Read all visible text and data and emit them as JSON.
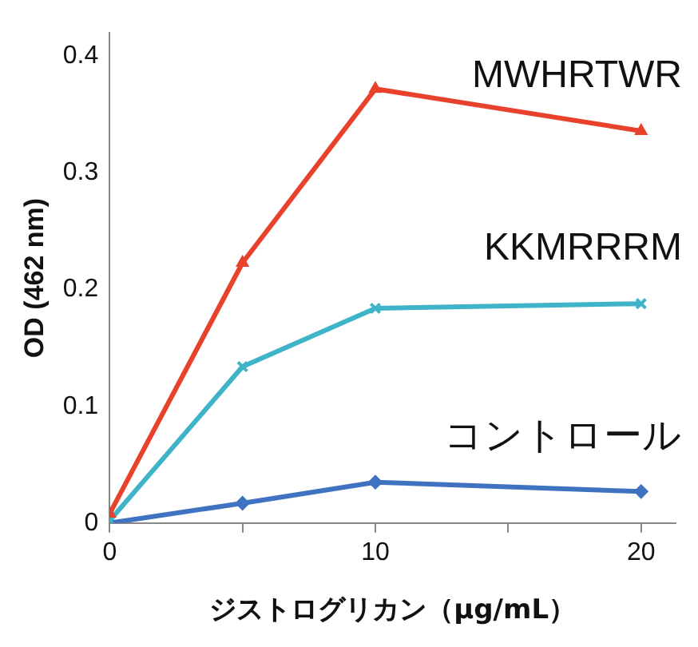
{
  "chart_data": {
    "type": "line",
    "xlabel": "ジストログリカン（μg/mL）",
    "ylabel": "OD (462 nm)",
    "x": [
      0,
      5,
      10,
      20
    ],
    "series": [
      {
        "name": "MWHRTWR",
        "color": "#e8412c",
        "marker": "triangle",
        "values": [
          0.008,
          0.223,
          0.372,
          0.336
        ]
      },
      {
        "name": "KKMRRRM",
        "color": "#3fb3c8",
        "marker": "cross",
        "values": [
          0.002,
          0.134,
          0.184,
          0.188
        ]
      },
      {
        "name": "コントロール",
        "color": "#3f72c0",
        "marker": "diamond",
        "values": [
          0,
          0.017,
          0.035,
          0.027
        ]
      }
    ],
    "xlim": [
      0,
      21.3
    ],
    "xticks": [
      0,
      {
        "value": 5,
        "label": null
      },
      10,
      {
        "value": 15,
        "label": null
      },
      20
    ],
    "ylim": [
      0,
      0.42
    ],
    "yticks": [
      0,
      0.1,
      0.2,
      0.3,
      0.4
    ],
    "grid": false,
    "legend": false,
    "line_style": "solid"
  }
}
